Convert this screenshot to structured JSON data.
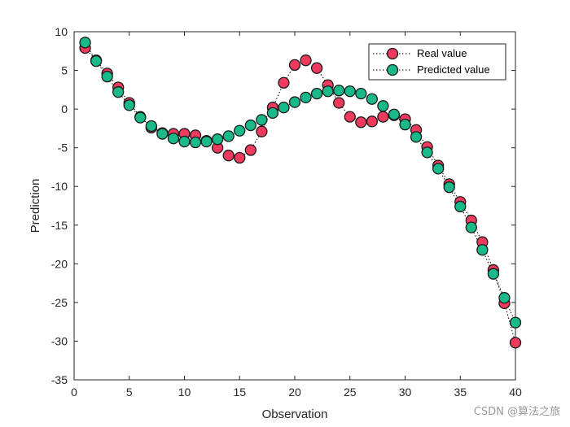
{
  "chart_data": {
    "type": "line",
    "title": "",
    "xlabel": "Observation",
    "ylabel": "Prediction",
    "xlim": [
      0,
      40
    ],
    "ylim": [
      -35,
      10
    ],
    "xticks": [
      0,
      5,
      10,
      15,
      20,
      25,
      30,
      35,
      40
    ],
    "yticks": [
      10,
      5,
      0,
      -5,
      -10,
      -15,
      -20,
      -25,
      -30,
      -35
    ],
    "grid": false,
    "legend_position": "top-right",
    "x": [
      1,
      2,
      3,
      4,
      5,
      6,
      7,
      8,
      9,
      10,
      11,
      12,
      13,
      14,
      15,
      16,
      17,
      18,
      19,
      20,
      21,
      22,
      23,
      24,
      25,
      26,
      27,
      28,
      29,
      30,
      31,
      32,
      33,
      34,
      35,
      36,
      37,
      38,
      39,
      40
    ],
    "series": [
      {
        "name": "Real value",
        "color": "#EE3A5C",
        "values": [
          7.9,
          6.3,
          4.6,
          2.8,
          0.8,
          -1.0,
          -2.4,
          -3.1,
          -3.2,
          -3.2,
          -3.4,
          -4.1,
          -5.0,
          -6.0,
          -6.3,
          -5.3,
          -2.9,
          0.2,
          3.4,
          5.7,
          6.3,
          5.3,
          3.1,
          0.8,
          -1.0,
          -1.7,
          -1.6,
          -1.0,
          -0.8,
          -1.3,
          -2.7,
          -4.9,
          -7.3,
          -9.7,
          -12.0,
          -14.4,
          -17.2,
          -20.8,
          -25.1,
          -30.2
        ]
      },
      {
        "name": "Predicted value",
        "color": "#1AB98A",
        "values": [
          8.6,
          6.2,
          4.2,
          2.2,
          0.5,
          -1.1,
          -2.2,
          -3.2,
          -3.8,
          -4.2,
          -4.3,
          -4.2,
          -3.9,
          -3.5,
          -2.8,
          -2.1,
          -1.4,
          -0.5,
          0.2,
          0.9,
          1.5,
          2.0,
          2.3,
          2.4,
          2.3,
          2.0,
          1.3,
          0.4,
          -0.7,
          -2.0,
          -3.6,
          -5.6,
          -7.7,
          -10.1,
          -12.6,
          -15.3,
          -18.2,
          -21.3,
          -24.4,
          -27.6
        ]
      }
    ]
  },
  "watermark": "CSDN @算法之旅"
}
